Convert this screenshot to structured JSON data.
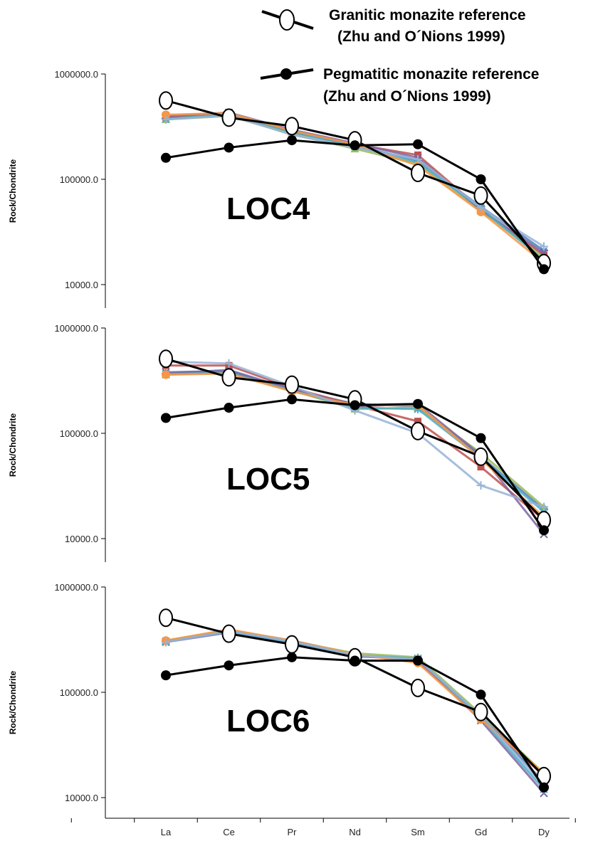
{
  "legend": {
    "granitic_line1": "Granitic monazite reference",
    "granitic_line2": "(Zhu and O´Nions 1999)",
    "pegmatitic_line1": "Pegmatitic monazite reference",
    "pegmatitic_line2": "(Zhu and O´Nions 1999)"
  },
  "chart_data": {
    "type": "line",
    "log_scale_y": true,
    "categories": [
      "La",
      "Ce",
      "Pr",
      "Nd",
      "Sm",
      "Gd",
      "Dy"
    ],
    "ylabel": "Rock/Chondrite",
    "ylim": [
      8000,
      1000000
    ],
    "y_ticks": [
      {
        "value": 1000000,
        "label": "1000000.0"
      },
      {
        "value": 100000,
        "label": "100000.0"
      },
      {
        "value": 10000,
        "label": "10000.0"
      }
    ],
    "references": {
      "granitic": {
        "name": "Granitic monazite reference",
        "values": [
          540000,
          380000,
          320000,
          235000,
          115000,
          70000,
          16000
        ],
        "marker": "open-ellipse",
        "color": "#000000"
      },
      "pegmatitic": {
        "name": "Pegmatitic monazite reference",
        "values": [
          160000,
          200000,
          235000,
          210000,
          215000,
          100000,
          14000
        ],
        "marker": "filled-circle",
        "color": "#000000"
      }
    },
    "panels": [
      {
        "label": "LOC4",
        "samples": [
          {
            "color": "#4f81bd",
            "values": [
              380000,
              410000,
              280000,
              210000,
              150000,
              55000,
              21000
            ]
          },
          {
            "color": "#c0504d",
            "values": [
              390000,
              420000,
              290000,
              215000,
              170000,
              52000,
              19000
            ]
          },
          {
            "color": "#9bbb59",
            "values": [
              370000,
              400000,
              270000,
              195000,
              140000,
              50000,
              18000
            ]
          },
          {
            "color": "#8064a2",
            "values": [
              400000,
              430000,
              295000,
              220000,
              160000,
              51000,
              20000
            ]
          },
          {
            "color": "#4bacc6",
            "values": [
              375000,
              415000,
              285000,
              205000,
              145000,
              53000,
              17000
            ]
          },
          {
            "color": "#f79646",
            "values": [
              410000,
              425000,
              290000,
              215000,
              135000,
              49000,
              16000
            ]
          },
          {
            "color": "#95b3d7",
            "values": [
              370000,
              405000,
              265000,
              200000,
              155000,
              54000,
              23000
            ]
          }
        ],
        "granitic": [
          560000,
          385000,
          320000,
          235000,
          115000,
          70000,
          16000
        ],
        "pegmatitic": [
          160000,
          200000,
          235000,
          210000,
          215000,
          100000,
          14000
        ]
      },
      {
        "label": "LOC5",
        "samples": [
          {
            "color": "#4f81bd",
            "values": [
              370000,
              400000,
              260000,
              190000,
              180000,
              60000,
              19000
            ]
          },
          {
            "color": "#c0504d",
            "values": [
              440000,
              440000,
              270000,
              185000,
              130000,
              48000,
              15000
            ]
          },
          {
            "color": "#9bbb59",
            "values": [
              360000,
              380000,
              255000,
              170000,
              175000,
              65000,
              20000
            ]
          },
          {
            "color": "#8064a2",
            "values": [
              380000,
              390000,
              265000,
              180000,
              190000,
              62000,
              11000
            ]
          },
          {
            "color": "#4bacc6",
            "values": [
              365000,
              375000,
              255000,
              175000,
              170000,
              58000,
              18000
            ]
          },
          {
            "color": "#f79646",
            "values": [
              360000,
              370000,
              250000,
              185000,
              185000,
              57000,
              16000
            ]
          },
          {
            "color": "#95b3d7",
            "values": [
              480000,
              460000,
              280000,
              165000,
              100000,
              32000,
              20000
            ]
          }
        ],
        "granitic": [
          510000,
          340000,
          290000,
          210000,
          105000,
          60000,
          15000
        ],
        "pegmatitic": [
          140000,
          175000,
          210000,
          185000,
          190000,
          90000,
          12000
        ]
      },
      {
        "label": "LOC6",
        "samples": [
          {
            "color": "#4f81bd",
            "values": [
              300000,
              380000,
              300000,
              225000,
              200000,
              60000,
              14000
            ]
          },
          {
            "color": "#c0504d",
            "values": [
              305000,
              385000,
              310000,
              230000,
              195000,
              58000,
              16000
            ]
          },
          {
            "color": "#9bbb59",
            "values": [
              310000,
              390000,
              305000,
              235000,
              215000,
              62000,
              17000
            ]
          },
          {
            "color": "#8064a2",
            "values": [
              300000,
              370000,
              295000,
              220000,
              205000,
              54000,
              11000
            ]
          },
          {
            "color": "#4bacc6",
            "values": [
              305000,
              375000,
              300000,
              225000,
              210000,
              57000,
              12000
            ]
          },
          {
            "color": "#f79646",
            "values": [
              310000,
              395000,
              310000,
              230000,
              190000,
              55000,
              17000
            ]
          },
          {
            "color": "#95b3d7",
            "values": [
              300000,
              380000,
              305000,
              225000,
              205000,
              60000,
              13000
            ]
          }
        ],
        "granitic": [
          510000,
          360000,
          285000,
          215000,
          110000,
          65000,
          16000
        ],
        "pegmatitic": [
          145000,
          180000,
          215000,
          200000,
          200000,
          95000,
          12500
        ]
      }
    ]
  }
}
